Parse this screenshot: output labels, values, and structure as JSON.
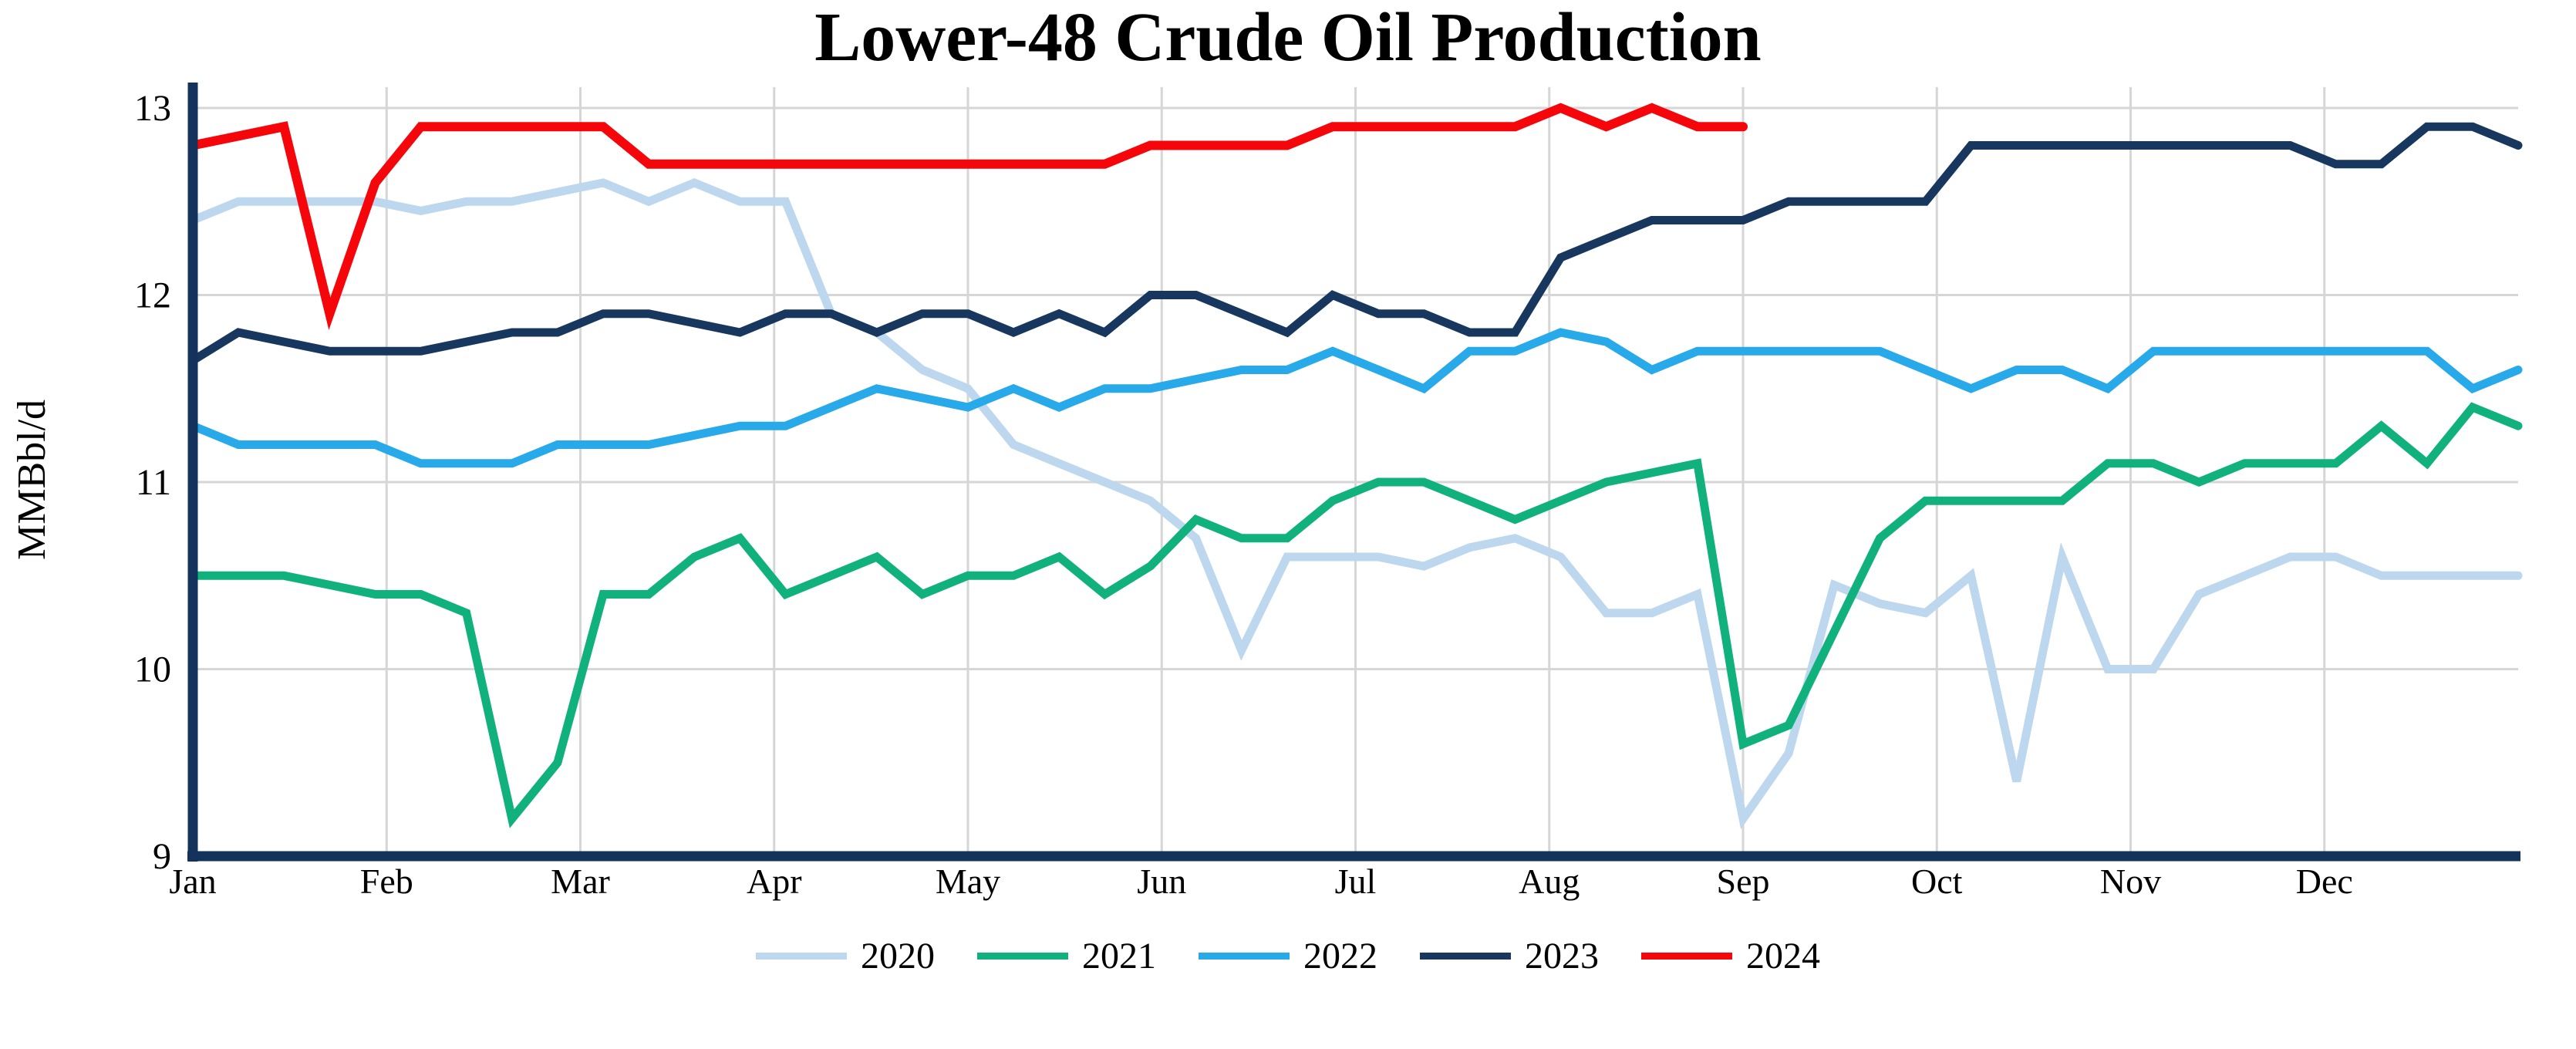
{
  "title": "Lower-48 Crude Oil Production",
  "y_axis": {
    "label": "MMBbl/d",
    "ticks": [
      13,
      12,
      11,
      10,
      9
    ]
  },
  "x_axis": {
    "months": [
      "Jan",
      "Feb",
      "Mar",
      "Apr",
      "May",
      "Jun",
      "Jul",
      "Aug",
      "Sep",
      "Oct",
      "Nov",
      "Dec"
    ]
  },
  "legend": [
    "2020",
    "2021",
    "2022",
    "2023",
    "2024"
  ],
  "colors": {
    "background": "#FFFFFF",
    "grid": "#D6D6D6",
    "axis": "#14335C",
    "text": "#000000",
    "series_2020": "#BDD7EE",
    "series_2021": "#10B17C",
    "series_2022": "#27A9EA",
    "series_2023": "#17375E",
    "series_2024": "#F5060B"
  },
  "chart_data": {
    "type": "line",
    "title": "Lower-48 Crude Oil Production",
    "xlabel": "",
    "ylabel": "MMBbl/d",
    "ylim": [
      9,
      13
    ],
    "yticks": [
      9,
      10,
      11,
      12,
      13
    ],
    "x_unit": "weekly observations, Jan through Dec",
    "grid": true,
    "legend_position": "bottom",
    "categories_note": "x values are week indexes 1-52 mapped evenly across Jan-Dec; 2024 series ends in early Sep",
    "series": [
      {
        "name": "2020",
        "color": "#BDD7EE",
        "values": [
          12.4,
          12.5,
          12.5,
          12.5,
          12.5,
          12.45,
          12.5,
          12.5,
          12.55,
          12.6,
          12.5,
          12.6,
          12.5,
          12.5,
          11.9,
          11.8,
          11.6,
          11.5,
          11.2,
          11.1,
          11.0,
          10.9,
          10.7,
          10.1,
          10.6,
          10.6,
          10.6,
          10.55,
          10.65,
          10.7,
          10.6,
          10.3,
          10.3,
          10.4,
          9.2,
          9.55,
          10.45,
          10.35,
          10.3,
          10.5,
          9.4,
          10.6,
          10.0,
          10.0,
          10.4,
          10.5,
          10.6,
          10.6,
          10.5,
          10.5,
          10.5,
          10.5
        ]
      },
      {
        "name": "2021",
        "color": "#10B17C",
        "values": [
          10.5,
          10.5,
          10.5,
          10.45,
          10.4,
          10.4,
          10.3,
          9.2,
          9.5,
          10.4,
          10.4,
          10.6,
          10.7,
          10.4,
          10.5,
          10.6,
          10.4,
          10.5,
          10.5,
          10.6,
          10.4,
          10.55,
          10.8,
          10.7,
          10.7,
          10.9,
          11.0,
          11.0,
          10.9,
          10.8,
          10.9,
          11.0,
          11.05,
          11.1,
          9.6,
          9.7,
          10.2,
          10.7,
          10.9,
          10.9,
          10.9,
          10.9,
          11.1,
          11.1,
          11.0,
          11.1,
          11.1,
          11.1,
          11.3,
          11.1,
          11.4,
          11.3
        ]
      },
      {
        "name": "2022",
        "color": "#27A9EA",
        "values": [
          11.3,
          11.2,
          11.2,
          11.2,
          11.2,
          11.1,
          11.1,
          11.1,
          11.2,
          11.2,
          11.2,
          11.25,
          11.3,
          11.3,
          11.4,
          11.5,
          11.45,
          11.4,
          11.5,
          11.4,
          11.5,
          11.5,
          11.55,
          11.6,
          11.6,
          11.7,
          11.6,
          11.5,
          11.7,
          11.7,
          11.8,
          11.75,
          11.6,
          11.7,
          11.7,
          11.7,
          11.7,
          11.7,
          11.6,
          11.5,
          11.6,
          11.6,
          11.5,
          11.7,
          11.7,
          11.7,
          11.7,
          11.7,
          11.7,
          11.7,
          11.5,
          11.6
        ]
      },
      {
        "name": "2023",
        "color": "#17375E",
        "values": [
          11.65,
          11.8,
          11.75,
          11.7,
          11.7,
          11.7,
          11.75,
          11.8,
          11.8,
          11.9,
          11.9,
          11.85,
          11.8,
          11.9,
          11.9,
          11.8,
          11.9,
          11.9,
          11.8,
          11.9,
          11.8,
          12.0,
          12.0,
          11.9,
          11.8,
          12.0,
          11.9,
          11.9,
          11.8,
          11.8,
          12.2,
          12.3,
          12.4,
          12.4,
          12.4,
          12.5,
          12.5,
          12.5,
          12.5,
          12.8,
          12.8,
          12.8,
          12.8,
          12.8,
          12.8,
          12.8,
          12.8,
          12.7,
          12.7,
          12.9,
          12.9,
          12.8
        ]
      },
      {
        "name": "2024",
        "color": "#F5060B",
        "values": [
          12.8,
          12.85,
          12.9,
          11.9,
          12.6,
          12.9,
          12.9,
          12.9,
          12.9,
          12.9,
          12.7,
          12.7,
          12.7,
          12.7,
          12.7,
          12.7,
          12.7,
          12.7,
          12.7,
          12.7,
          12.7,
          12.8,
          12.8,
          12.8,
          12.8,
          12.9,
          12.9,
          12.9,
          12.9,
          12.9,
          13.0,
          12.9,
          13.0,
          12.9,
          12.9
        ]
      }
    ]
  }
}
